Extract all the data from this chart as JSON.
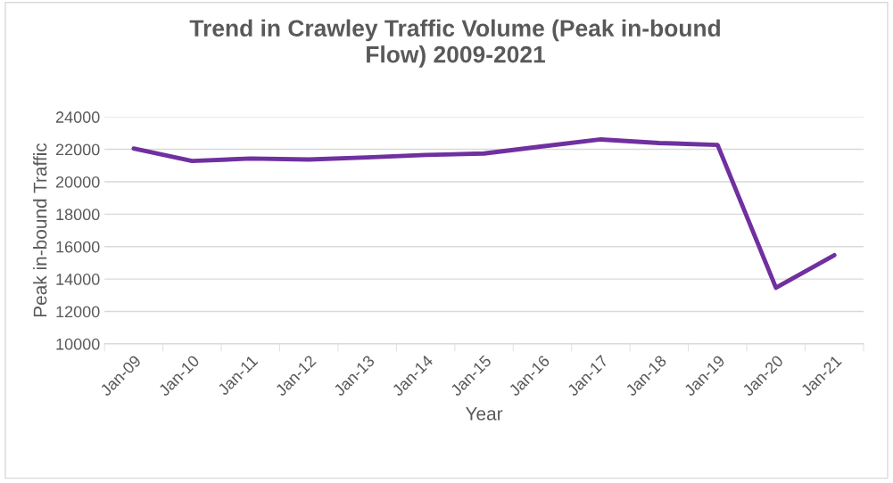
{
  "chart_data": {
    "type": "line",
    "title": "Trend in Crawley Traffic Volume (Peak in-bound\nFlow) 2009-2021",
    "xlabel": "Year",
    "ylabel": "Peak in-bound Traffic",
    "categories": [
      "Jan-09",
      "Jan-10",
      "Jan-11",
      "Jan-12",
      "Jan-13",
      "Jan-14",
      "Jan-15",
      "Jan-16",
      "Jan-17",
      "Jan-18",
      "Jan-19",
      "Jan-20",
      "Jan-21"
    ],
    "series": [
      {
        "color": "#7030a0",
        "values": [
          22050,
          21280,
          21430,
          21370,
          21500,
          21650,
          21740,
          22180,
          22610,
          22390,
          22270,
          13460,
          15470
        ]
      }
    ],
    "ylim": [
      10000,
      24000
    ],
    "yticks": [
      10000,
      12000,
      14000,
      16000,
      18000,
      20000,
      22000,
      24000
    ],
    "grid": "y",
    "legend": false,
    "marker": "none",
    "line_style": "solid"
  }
}
